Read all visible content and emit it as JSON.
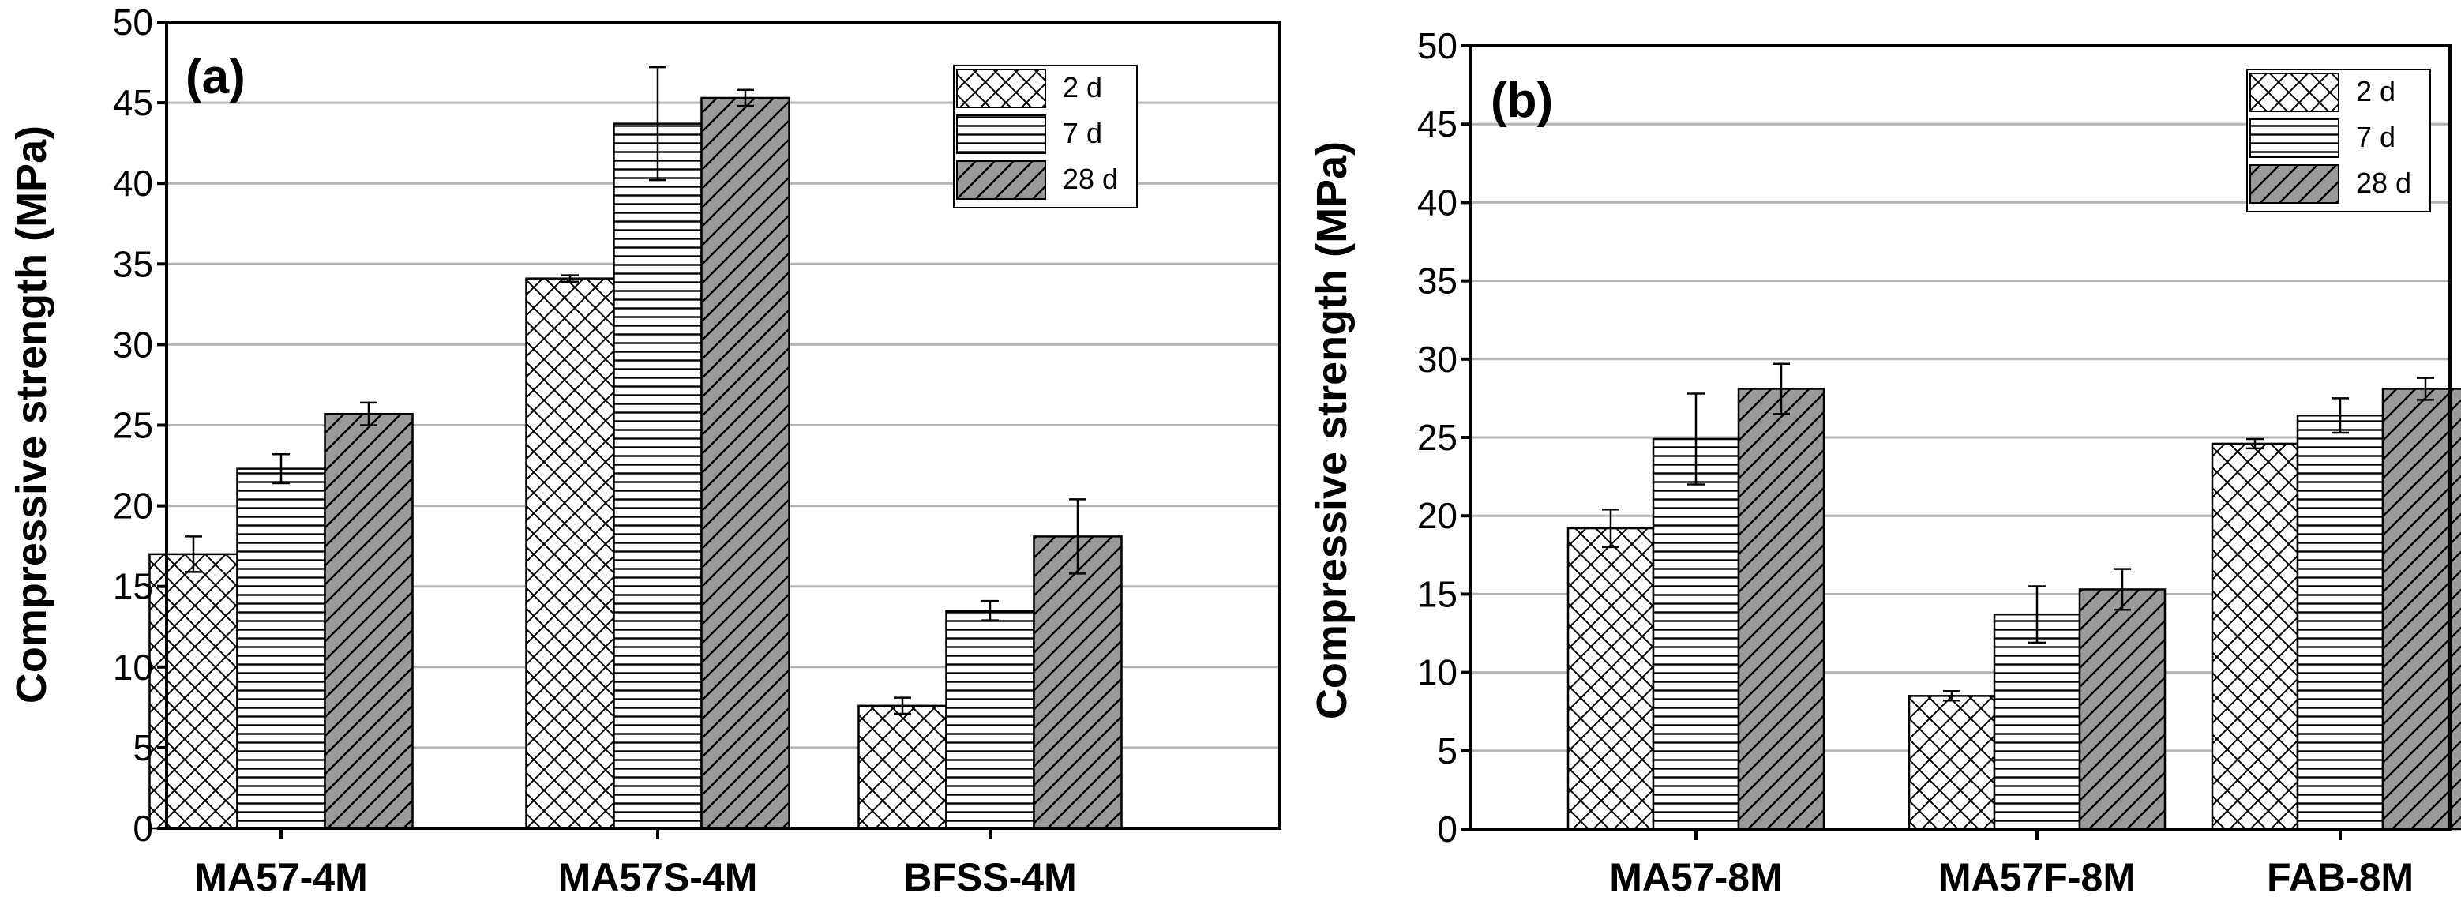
{
  "colors": {
    "axis": "#000000",
    "grid": "#b4b4b4",
    "bar_stroke": "#000000",
    "bar_2d_fill": "#ffffff",
    "bar_7d_fill": "#ffffff",
    "bar_28d_fill": "#9a9a9a",
    "pattern_line": "#000000"
  },
  "chart_data": [
    {
      "type": "bar",
      "panel_label": "(a)",
      "ylabel": "Compressive strength (MPa)",
      "xlabel": "",
      "ylim": [
        0,
        50
      ],
      "yticks": [
        0,
        5,
        10,
        15,
        20,
        25,
        30,
        35,
        40,
        45,
        50
      ],
      "grid": true,
      "legend_position": "top-right",
      "categories": [
        "MA57-4M",
        "MA57S-4M",
        "BFSS-4M"
      ],
      "series": [
        {
          "name": "2 d",
          "pattern": "crosshatch",
          "values": [
            17.0,
            34.1,
            7.6
          ],
          "errors": [
            1.1,
            0.2,
            0.5
          ]
        },
        {
          "name": "7 d",
          "pattern": "horizontal",
          "values": [
            22.3,
            43.7,
            13.5
          ],
          "errors": [
            0.9,
            3.5,
            0.6
          ]
        },
        {
          "name": "28 d",
          "pattern": "diagonal",
          "values": [
            25.7,
            45.3,
            18.1
          ],
          "errors": [
            0.7,
            0.5,
            2.3
          ]
        }
      ]
    },
    {
      "type": "bar",
      "panel_label": "(b)",
      "ylabel": "Compressive strength (MPa)",
      "xlabel": "",
      "ylim": [
        0,
        50
      ],
      "yticks": [
        0,
        5,
        10,
        15,
        20,
        25,
        30,
        35,
        40,
        45,
        50
      ],
      "grid": true,
      "legend_position": "top-right",
      "categories": [
        "MA57-8M",
        "MA57F-8M",
        "FAB-8M"
      ],
      "series": [
        {
          "name": "2 d",
          "pattern": "crosshatch",
          "values": [
            19.2,
            8.5,
            24.6
          ],
          "errors": [
            1.2,
            0.3,
            0.3
          ]
        },
        {
          "name": "7 d",
          "pattern": "horizontal",
          "values": [
            24.9,
            13.7,
            26.4
          ],
          "errors": [
            2.9,
            1.8,
            1.1
          ]
        },
        {
          "name": "28 d",
          "pattern": "diagonal",
          "values": [
            28.1,
            15.3,
            28.1
          ],
          "errors": [
            1.6,
            1.3,
            0.7
          ]
        }
      ]
    }
  ]
}
